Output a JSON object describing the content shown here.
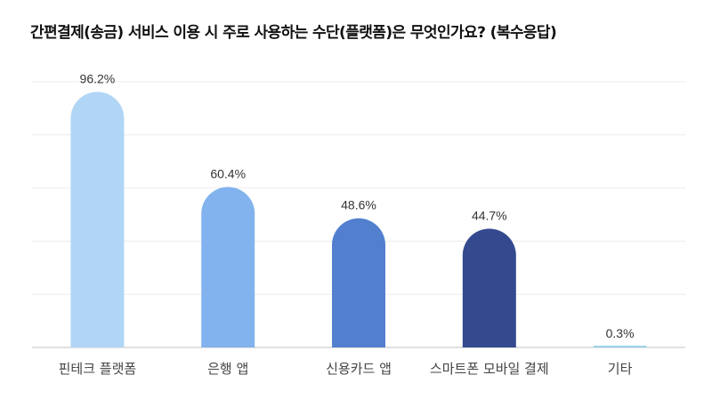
{
  "title": "간편결제(송금) 서비스 이용 시 주로 사용하는 수단(플랫폼)은 무엇인가요? (복수응답)",
  "chart_data": {
    "type": "bar",
    "title": "간편결제(송금) 서비스 이용 시 주로 사용하는 수단(플랫폼)은 무엇인가요? (복수응답)",
    "xlabel": "",
    "ylabel": "",
    "unit": "%",
    "categories": [
      "핀테크 플랫폼",
      "은행 앱",
      "신용카드 앱",
      "스마트폰 모바일 결제",
      "기타"
    ],
    "values": [
      96.2,
      60.4,
      48.6,
      44.7,
      0.3
    ],
    "value_labels": [
      "96.2%",
      "60.4%",
      "48.6%",
      "44.7%",
      "0.3%"
    ],
    "colors": [
      "#B1D6F5",
      "#82B3EE",
      "#5280CF",
      "#34498E",
      "#9BD3EC"
    ],
    "ylim": [
      0,
      100
    ],
    "grid": true,
    "legend": "none"
  }
}
